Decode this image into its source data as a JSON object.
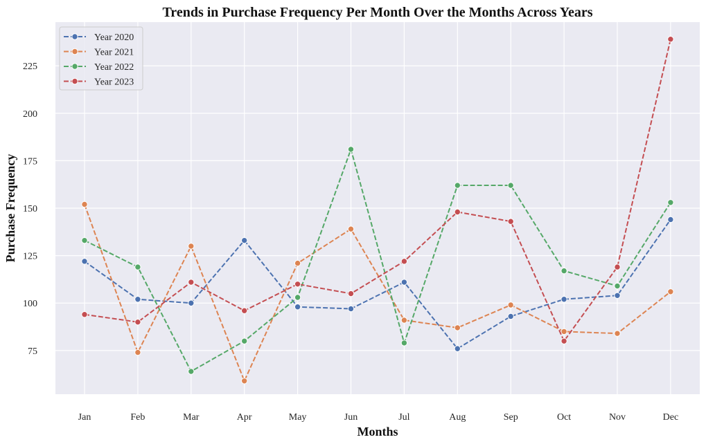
{
  "chart_data": {
    "type": "line",
    "title": "Trends in Purchase Frequency Per Month Over the Months Across Years",
    "xlabel": "Months",
    "ylabel": "Purchase Frequency",
    "categories": [
      "Jan",
      "Feb",
      "Mar",
      "Apr",
      "May",
      "Jun",
      "Jul",
      "Aug",
      "Sep",
      "Oct",
      "Nov",
      "Dec"
    ],
    "ylim": [
      52,
      248
    ],
    "yticks": [
      75,
      100,
      125,
      150,
      175,
      200,
      225
    ],
    "grid": true,
    "legend_position": "top-left",
    "series": [
      {
        "name": "Year 2020",
        "color": "#4c72b0",
        "values": [
          122,
          102,
          100,
          133,
          98,
          97,
          111,
          76,
          93,
          102,
          104,
          144
        ]
      },
      {
        "name": "Year 2021",
        "color": "#dd8452",
        "values": [
          152,
          74,
          130,
          59,
          121,
          139,
          91,
          87,
          99,
          85,
          84,
          106
        ]
      },
      {
        "name": "Year 2022",
        "color": "#55a868",
        "values": [
          133,
          119,
          64,
          80,
          103,
          181,
          79,
          162,
          162,
          117,
          109,
          153
        ]
      },
      {
        "name": "Year 2023",
        "color": "#c44e52",
        "values": [
          94,
          90,
          111,
          96,
          110,
          105,
          122,
          148,
          143,
          80,
          119,
          239
        ]
      }
    ]
  }
}
